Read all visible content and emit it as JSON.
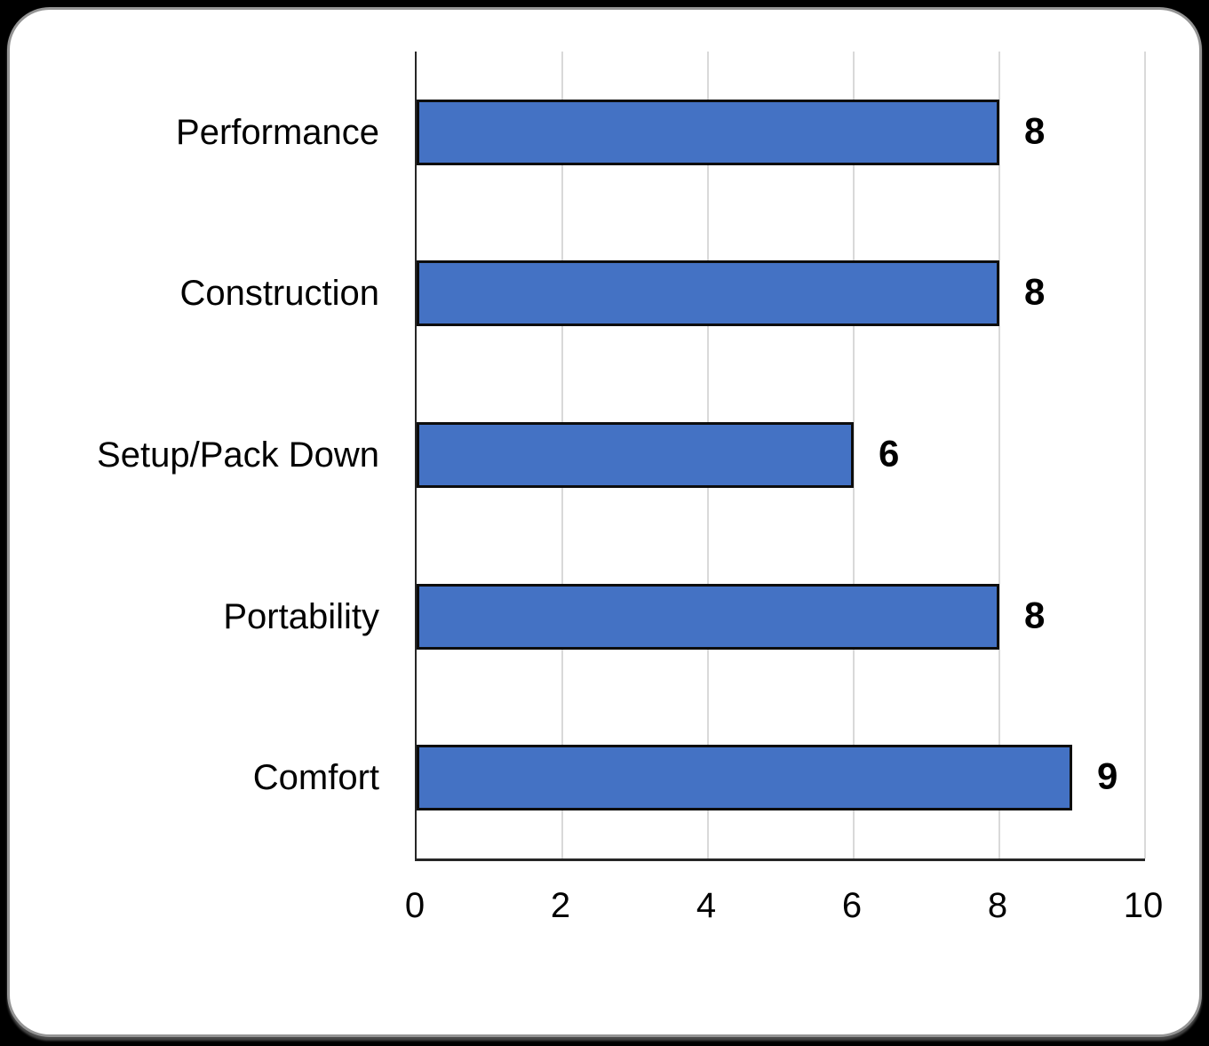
{
  "page": {
    "background_color": "#000000",
    "card_background": "#ffffff",
    "card_border_color": "#949494"
  },
  "chart_data": {
    "type": "bar",
    "orientation": "horizontal",
    "title": "",
    "xlabel": "",
    "ylabel": "",
    "categories": [
      "Performance",
      "Construction",
      "Setup/Pack Down",
      "Portability",
      "Comfort"
    ],
    "values": [
      8,
      8,
      6,
      8,
      9
    ],
    "data_labels": [
      "8",
      "8",
      "6",
      "8",
      "9"
    ],
    "xlim": [
      0,
      10
    ],
    "x_ticks": [
      "0",
      "2",
      "4",
      "6",
      "8",
      "10"
    ],
    "x_tick_values": [
      0,
      2,
      4,
      6,
      8,
      10
    ],
    "grid": "vertical gridlines every 2 units",
    "legend": "none",
    "bar_fill_color": "#4472C4",
    "bar_border_color": "#0d0d0d",
    "gridline_color": "#d9d9d9",
    "axis_line_color": "#262626",
    "text_color": "#000000"
  }
}
